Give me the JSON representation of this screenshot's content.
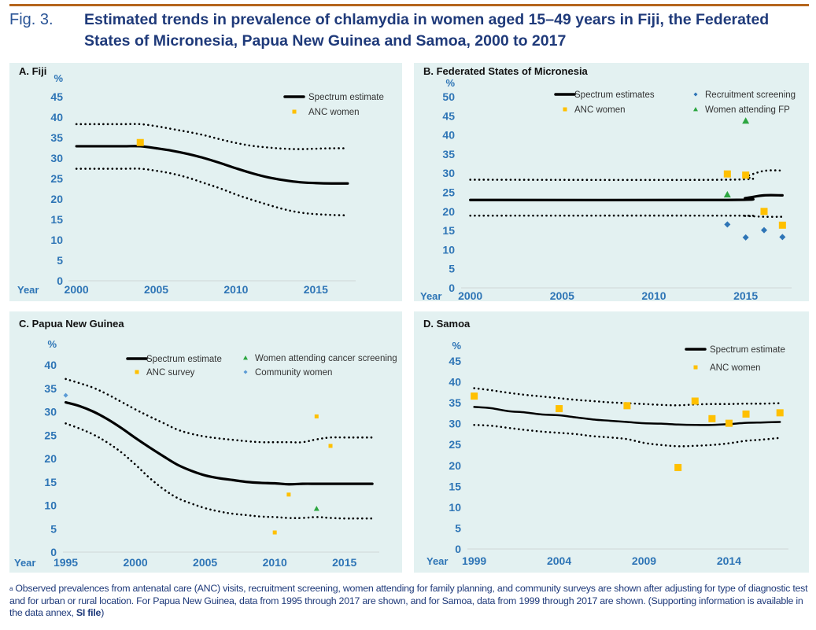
{
  "figure": {
    "label": "Fig. 3.",
    "title": "Estimated trends in prevalence of chlamydia in women aged 15–49 years in Fiji, the Federated States of Micronesia, Papua New Guinea and Samoa, 2000 to 2017",
    "footnote_marker": "a",
    "footnote": "Observed prevalences from antenatal care (ANC) visits, recruitment screening, women attending for family planning, and community surveys are shown after adjusting for type of diagnostic test and for urban or rural location. For Papua New Guinea, data from 1995 through 2017 are shown, and for Samoa, data from 1999 through 2017 are shown. (Supporting information is available in the data annex, ",
    "footnote_link": "SI file",
    "footnote_end": ")"
  },
  "colors": {
    "panel_bg": "#e3f1f1",
    "axis_text": "#2e75b6",
    "estimate": "#000000",
    "anc": "#ffc000",
    "recruitment": "#2e75b6",
    "fp": "#2ca640",
    "community": "#5b9bd5",
    "title": "#1f3a7a",
    "rule": "#b5651d"
  },
  "chart_data": [
    {
      "id": "A",
      "type": "line",
      "title": "A. Fiji",
      "ylabel": "%",
      "xlabel": "Year",
      "xlim": [
        1999.5,
        2017.5
      ],
      "ylim": [
        0,
        45
      ],
      "yticks": [
        0,
        5,
        10,
        15,
        20,
        25,
        30,
        35,
        40,
        45
      ],
      "xticks": [
        2000,
        2005,
        2010,
        2015
      ],
      "legend": [
        {
          "label": "Spectrum estimate",
          "marker": "line"
        },
        {
          "label": "ANC women",
          "marker": "square",
          "color": "#ffc000"
        }
      ],
      "legend_position": "top-right",
      "series": [
        {
          "name": "Spectrum estimate",
          "style": "solid",
          "x": [
            2000,
            2001,
            2002,
            2003,
            2004,
            2005,
            2006,
            2007,
            2008,
            2009,
            2010,
            2011,
            2012,
            2013,
            2014,
            2015,
            2016,
            2017
          ],
          "y": [
            32.9,
            32.9,
            32.9,
            32.9,
            32.9,
            32.4,
            31.8,
            31.0,
            30.0,
            28.8,
            27.5,
            26.3,
            25.3,
            24.6,
            24.1,
            23.9,
            23.8,
            23.8
          ]
        },
        {
          "name": "Upper bound",
          "style": "dotted",
          "x": [
            2000,
            2001,
            2002,
            2003,
            2004,
            2005,
            2006,
            2007,
            2008,
            2009,
            2010,
            2011,
            2012,
            2013,
            2014,
            2015,
            2016,
            2017
          ],
          "y": [
            38.3,
            38.3,
            38.3,
            38.3,
            38.3,
            37.8,
            37.1,
            36.4,
            35.6,
            34.6,
            33.7,
            33.0,
            32.6,
            32.3,
            32.2,
            32.3,
            32.4,
            32.4
          ]
        },
        {
          "name": "Lower bound",
          "style": "dotted",
          "x": [
            2000,
            2001,
            2002,
            2003,
            2004,
            2005,
            2006,
            2007,
            2008,
            2009,
            2010,
            2011,
            2012,
            2013,
            2014,
            2015,
            2016,
            2017
          ],
          "y": [
            27.4,
            27.4,
            27.4,
            27.4,
            27.4,
            26.9,
            26.2,
            25.2,
            23.9,
            22.6,
            21.1,
            19.8,
            18.6,
            17.5,
            16.7,
            16.3,
            16.1,
            16.0
          ]
        },
        {
          "name": "ANC women",
          "style": "square",
          "color": "#ffc000",
          "x": [
            2004
          ],
          "y": [
            33.8
          ]
        }
      ]
    },
    {
      "id": "B",
      "type": "line",
      "title": "B. Federated States of Micronesia",
      "ylabel": "%",
      "xlabel": "Year",
      "xlim": [
        1999.5,
        2017.5
      ],
      "ylim": [
        0,
        50
      ],
      "yticks": [
        0,
        5,
        10,
        15,
        20,
        25,
        30,
        35,
        40,
        45,
        50
      ],
      "xticks": [
        2000,
        2005,
        2010,
        2015
      ],
      "legend": [
        {
          "label": "Spectrum estimates",
          "marker": "line"
        },
        {
          "label": "ANC women",
          "marker": "square",
          "color": "#ffc000"
        },
        {
          "label": "Recruitment screening",
          "marker": "diamond",
          "color": "#2e75b6"
        },
        {
          "label": "Women attending FP",
          "marker": "triangle",
          "color": "#2ca640"
        }
      ],
      "legend_position": "top-right",
      "series": [
        {
          "name": "Spectrum estimates",
          "style": "solid",
          "x": [
            2000,
            2014,
            2015,
            2016,
            2017
          ],
          "y": [
            23.0,
            23.0,
            23.5,
            24.2,
            24.2
          ]
        },
        {
          "name": "Upper bound",
          "style": "dotted",
          "x": [
            2000,
            2014,
            2015,
            2016,
            2017
          ],
          "y": [
            28.3,
            28.3,
            29.2,
            30.6,
            30.7
          ]
        },
        {
          "name": "Lower bound",
          "style": "dotted",
          "x": [
            2000,
            2014,
            2015,
            2016,
            2017
          ],
          "y": [
            18.9,
            18.9,
            18.8,
            18.6,
            18.6
          ]
        },
        {
          "name": "ANC women",
          "style": "square",
          "color": "#ffc000",
          "x": [
            2014,
            2015,
            2016,
            2017
          ],
          "y": [
            29.8,
            29.5,
            20.0,
            16.4
          ]
        },
        {
          "name": "Recruitment screening",
          "style": "diamond",
          "color": "#2e75b6",
          "x": [
            2014,
            2015,
            2016,
            2017
          ],
          "y": [
            16.6,
            13.2,
            15.1,
            13.3
          ]
        },
        {
          "name": "Women attending FP",
          "style": "triangle",
          "color": "#2ca640",
          "x": [
            2014,
            2015
          ],
          "y": [
            24.4,
            43.7
          ]
        }
      ]
    },
    {
      "id": "C",
      "type": "line",
      "title": "C. Papua New Guinea",
      "ylabel": "%",
      "xlabel": "Year",
      "xlim": [
        1994.8,
        2017.5
      ],
      "ylim": [
        0,
        40
      ],
      "yticks": [
        0,
        5,
        10,
        15,
        20,
        25,
        30,
        35,
        40
      ],
      "xticks": [
        1995,
        2000,
        2005,
        2010,
        2015
      ],
      "legend": [
        {
          "label": "Spectrum estimate",
          "marker": "line"
        },
        {
          "label": "ANC survey",
          "marker": "square",
          "color": "#ffc000"
        },
        {
          "label": "Women attending cancer screening",
          "marker": "triangle",
          "color": "#2ca640"
        },
        {
          "label": "Community women",
          "marker": "diamond",
          "color": "#5b9bd5"
        }
      ],
      "legend_position": "top-right",
      "series": [
        {
          "name": "Spectrum estimate",
          "style": "solid",
          "x": [
            1995,
            1996,
            1997,
            1998,
            1999,
            2000,
            2001,
            2002,
            2003,
            2004,
            2005,
            2006,
            2007,
            2008,
            2009,
            2010,
            2011,
            2012,
            2013,
            2014,
            2015,
            2016,
            2017
          ],
          "y": [
            32.0,
            31.2,
            30.0,
            28.4,
            26.5,
            24.4,
            22.4,
            20.5,
            18.7,
            17.4,
            16.4,
            15.8,
            15.4,
            15.0,
            14.8,
            14.7,
            14.5,
            14.6,
            14.6,
            14.6,
            14.6,
            14.6,
            14.6
          ]
        },
        {
          "name": "Upper bound",
          "style": "dotted",
          "x": [
            1995,
            1996,
            1997,
            1998,
            1999,
            2000,
            2001,
            2002,
            2003,
            2004,
            2005,
            2006,
            2007,
            2008,
            2009,
            2010,
            2011,
            2012,
            2013,
            2014,
            2015,
            2016,
            2017
          ],
          "y": [
            37.0,
            36.1,
            35.1,
            33.7,
            32.1,
            30.5,
            29.0,
            27.6,
            26.2,
            25.3,
            24.7,
            24.3,
            24.0,
            23.7,
            23.5,
            23.5,
            23.5,
            23.5,
            24.1,
            24.5,
            24.5,
            24.5,
            24.5
          ]
        },
        {
          "name": "Lower bound",
          "style": "dotted",
          "x": [
            1995,
            1996,
            1997,
            1998,
            1999,
            2000,
            2001,
            2002,
            2003,
            2004,
            2005,
            2006,
            2007,
            2008,
            2009,
            2010,
            2011,
            2012,
            2013,
            2014,
            2015,
            2016,
            2017
          ],
          "y": [
            27.5,
            26.4,
            25.1,
            23.4,
            21.3,
            18.7,
            15.9,
            13.5,
            11.6,
            10.4,
            9.4,
            8.7,
            8.2,
            7.9,
            7.6,
            7.5,
            7.3,
            7.3,
            7.5,
            7.3,
            7.2,
            7.2,
            7.2
          ]
        },
        {
          "name": "ANC survey",
          "style": "square",
          "color": "#ffc000",
          "x": [
            2010,
            2011,
            2013,
            2014
          ],
          "y": [
            4.2,
            12.3,
            29.0,
            22.7
          ]
        },
        {
          "name": "Women attending cancer screening",
          "style": "triangle",
          "color": "#2ca640",
          "x": [
            2013
          ],
          "y": [
            9.3
          ]
        },
        {
          "name": "Community women",
          "style": "diamond",
          "color": "#5b9bd5",
          "x": [
            1995
          ],
          "y": [
            33.5
          ]
        }
      ]
    },
    {
      "id": "D",
      "type": "line",
      "title": "D. Samoa",
      "ylabel": "%",
      "xlabel": "Year",
      "xlim": [
        1998.6,
        2017.5
      ],
      "ylim": [
        0,
        45
      ],
      "yticks": [
        0,
        5,
        10,
        15,
        20,
        25,
        30,
        35,
        40,
        45
      ],
      "xticks": [
        1999,
        2004,
        2009,
        2014
      ],
      "legend": [
        {
          "label": "Spectrum estimate",
          "marker": "line"
        },
        {
          "label": "ANC women",
          "marker": "square",
          "color": "#ffc000"
        }
      ],
      "legend_position": "top-right",
      "series": [
        {
          "name": "Spectrum estimate",
          "style": "solid",
          "x": [
            1999,
            2000,
            2001,
            2002,
            2003,
            2004,
            2005,
            2006,
            2007,
            2008,
            2009,
            2010,
            2011,
            2012,
            2013,
            2014,
            2015,
            2016,
            2017
          ],
          "y": [
            34.0,
            33.7,
            33.0,
            32.7,
            32.2,
            32.0,
            31.5,
            31.0,
            30.7,
            30.4,
            30.1,
            30.0,
            29.8,
            29.7,
            29.7,
            29.9,
            30.2,
            30.3,
            30.4
          ]
        },
        {
          "name": "Upper bound",
          "style": "dotted",
          "x": [
            1999,
            2000,
            2001,
            2002,
            2003,
            2004,
            2005,
            2006,
            2007,
            2008,
            2009,
            2010,
            2011,
            2012,
            2013,
            2014,
            2015,
            2016,
            2017
          ],
          "y": [
            38.5,
            38.0,
            37.4,
            36.9,
            36.5,
            36.1,
            35.7,
            35.4,
            35.1,
            34.9,
            34.7,
            34.5,
            34.4,
            34.6,
            34.7,
            34.7,
            34.8,
            34.8,
            34.9
          ]
        },
        {
          "name": "Lower bound",
          "style": "dotted",
          "x": [
            1999,
            2000,
            2001,
            2002,
            2003,
            2004,
            2005,
            2006,
            2007,
            2008,
            2009,
            2010,
            2011,
            2012,
            2013,
            2014,
            2015,
            2016,
            2017
          ],
          "y": [
            29.7,
            29.5,
            29.0,
            28.5,
            28.1,
            27.8,
            27.5,
            27.0,
            26.7,
            26.3,
            25.4,
            24.9,
            24.6,
            24.7,
            24.9,
            25.3,
            25.9,
            26.2,
            26.6
          ]
        },
        {
          "name": "ANC women",
          "style": "square",
          "color": "#ffc000",
          "x": [
            1999,
            2004,
            2008,
            2011,
            2012,
            2013,
            2014,
            2015,
            2017
          ],
          "y": [
            36.6,
            33.6,
            34.3,
            19.5,
            35.4,
            31.2,
            30.1,
            32.3,
            32.6
          ]
        }
      ]
    }
  ]
}
